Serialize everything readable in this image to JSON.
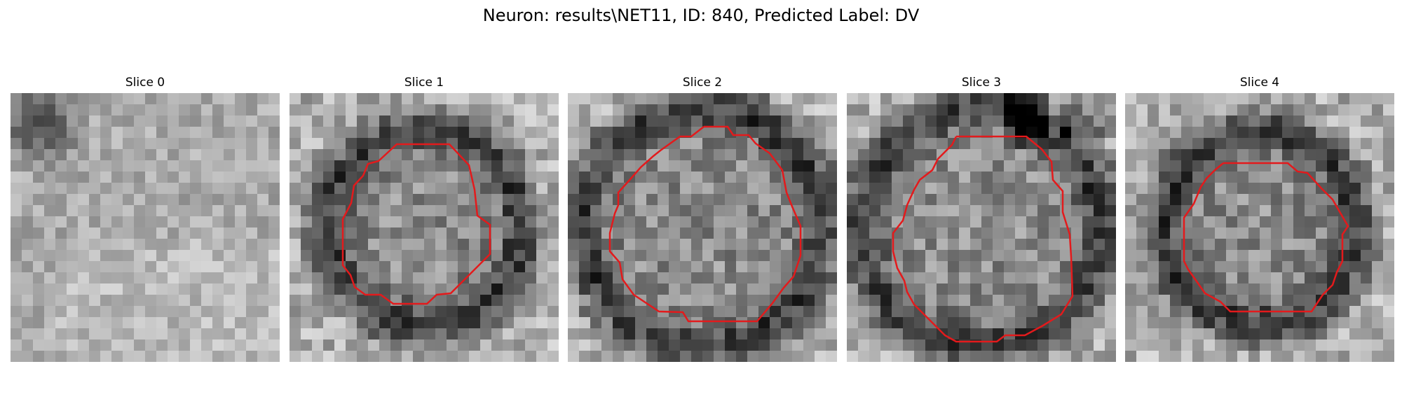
{
  "figure": {
    "title": "Neuron: results\\NET11, ID: 840, Predicted Label: DV"
  },
  "panels": [
    {
      "title": "Slice 0",
      "has_contour": false
    },
    {
      "title": "Slice 1",
      "has_contour": true
    },
    {
      "title": "Slice 2",
      "has_contour": true
    },
    {
      "title": "Slice 3",
      "has_contour": true
    },
    {
      "title": "Slice 4",
      "has_contour": true
    }
  ],
  "colors": {
    "contour": "#e31a1c",
    "background": "#ffffff"
  },
  "colormap": "grayscale"
}
